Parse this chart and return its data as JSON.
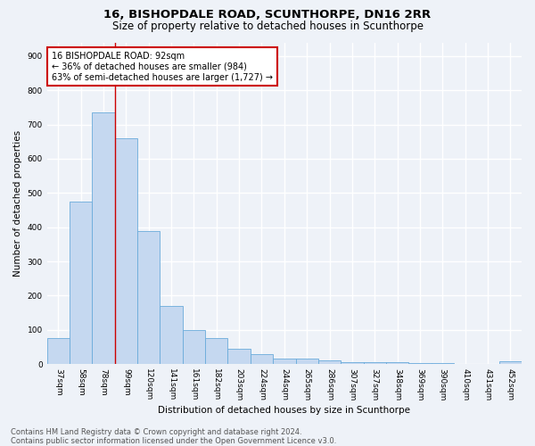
{
  "title": "16, BISHOPDALE ROAD, SCUNTHORPE, DN16 2RR",
  "subtitle": "Size of property relative to detached houses in Scunthorpe",
  "xlabel": "Distribution of detached houses by size in Scunthorpe",
  "ylabel": "Number of detached properties",
  "footer_line1": "Contains HM Land Registry data © Crown copyright and database right 2024.",
  "footer_line2": "Contains public sector information licensed under the Open Government Licence v3.0.",
  "bin_labels": [
    "37sqm",
    "58sqm",
    "78sqm",
    "99sqm",
    "120sqm",
    "141sqm",
    "161sqm",
    "182sqm",
    "203sqm",
    "224sqm",
    "244sqm",
    "265sqm",
    "286sqm",
    "307sqm",
    "327sqm",
    "348sqm",
    "369sqm",
    "390sqm",
    "410sqm",
    "431sqm",
    "452sqm"
  ],
  "bar_values": [
    75,
    475,
    735,
    660,
    390,
    170,
    100,
    75,
    45,
    30,
    15,
    15,
    10,
    5,
    5,
    5,
    2,
    2,
    0,
    0,
    8
  ],
  "bar_color": "#c5d8f0",
  "bar_edge_color": "#6aabdb",
  "vline_x_index": 2.5,
  "vline_color": "#cc0000",
  "annotation_text": "16 BISHOPDALE ROAD: 92sqm\n← 36% of detached houses are smaller (984)\n63% of semi-detached houses are larger (1,727) →",
  "annotation_box_color": "#ffffff",
  "annotation_box_edge": "#cc0000",
  "ylim": [
    0,
    940
  ],
  "yticks": [
    0,
    100,
    200,
    300,
    400,
    500,
    600,
    700,
    800,
    900
  ],
  "bg_color": "#eef2f8",
  "grid_color": "#ffffff",
  "title_fontsize": 9.5,
  "subtitle_fontsize": 8.5,
  "axis_label_fontsize": 7.5,
  "tick_fontsize": 6.5,
  "annotation_fontsize": 7,
  "footer_fontsize": 6
}
